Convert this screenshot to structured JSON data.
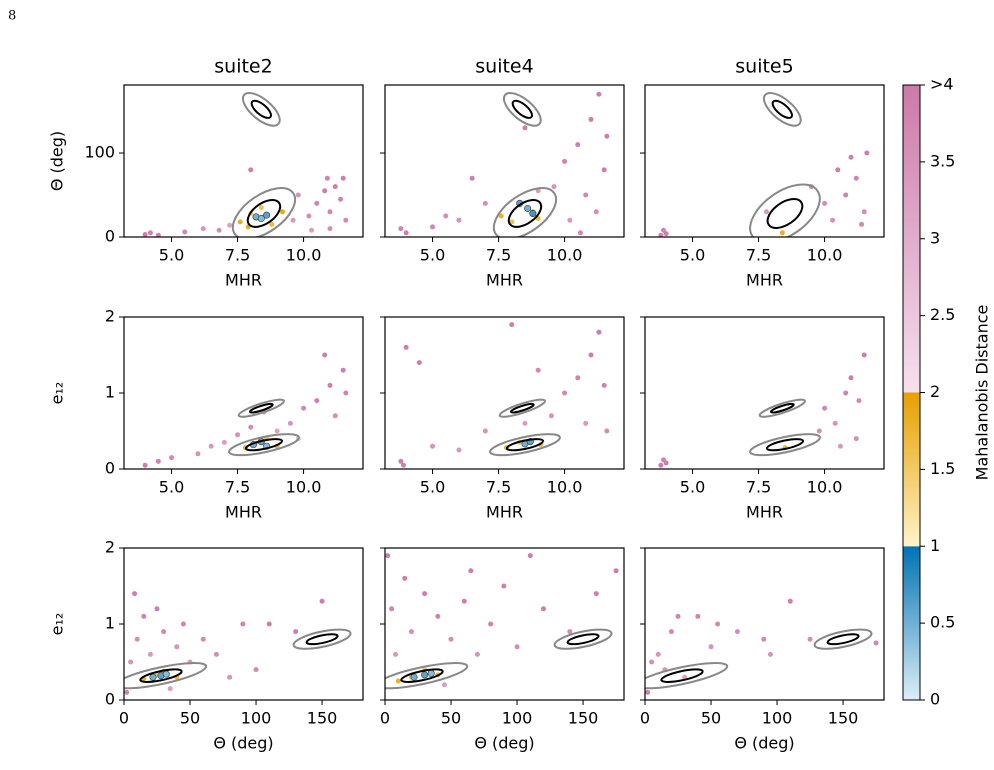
{
  "page_label": "8",
  "chart_data": [
    {
      "type": "scatter",
      "title": "suite2",
      "xlabel": "MHR",
      "ylabel": "Θ (deg)",
      "ytick_labels": true,
      "xlim": [
        3.2,
        12.25
      ],
      "ylim": [
        0,
        181
      ],
      "xticks": [
        {
          "value": 5,
          "label": "5.0"
        },
        7.5,
        {
          "value": 10,
          "label": "10.0"
        }
      ],
      "yticks": [
        0,
        100
      ],
      "x": [
        4.0,
        4.2,
        4.5,
        5.5,
        6.2,
        6.8,
        7.2,
        9.6,
        10.2,
        10.5,
        10.8,
        11.0,
        11.2,
        11.4,
        11.6,
        11.0,
        10.3,
        8.0,
        9.8,
        11.5,
        10.9,
        7.6,
        8.0,
        8.8,
        9.2,
        8.4,
        7.9,
        8.2,
        8.6,
        8.4
      ],
      "y": [
        3,
        5,
        2,
        6,
        10,
        8,
        14,
        20,
        25,
        40,
        55,
        30,
        60,
        45,
        20,
        10,
        8,
        80,
        50,
        70,
        70,
        18,
        28,
        15,
        30,
        35,
        12,
        24,
        26,
        22
      ],
      "distance": [
        3.9,
        3.8,
        3.9,
        3.7,
        3.5,
        3.6,
        3.2,
        3.4,
        3.6,
        3.8,
        3.9,
        3.7,
        3.9,
        3.8,
        3.7,
        3.6,
        3.3,
        3.9,
        3.5,
        3.9,
        3.8,
        1.8,
        1.5,
        1.7,
        1.9,
        1.6,
        1.8,
        0.5,
        0.6,
        0.4
      ],
      "ellipses": [
        {
          "cx": 8.4,
          "cy": 152,
          "rx": 0.85,
          "ry": 12,
          "angle": 40,
          "color": "#888888"
        },
        {
          "cx": 8.4,
          "cy": 152,
          "rx": 0.45,
          "ry": 6,
          "angle": 40,
          "color": "#000000"
        },
        {
          "cx": 8.5,
          "cy": 28,
          "rx": 1.35,
          "ry": 22,
          "angle": -35,
          "color": "#888888"
        },
        {
          "cx": 8.5,
          "cy": 28,
          "rx": 0.7,
          "ry": 12,
          "angle": -35,
          "color": "#000000"
        }
      ]
    },
    {
      "type": "scatter",
      "title": "suite4",
      "xlabel": "MHR",
      "ytick_labels": false,
      "xlim": [
        3.2,
        12.25
      ],
      "ylim": [
        0,
        181
      ],
      "xticks": [
        {
          "value": 5,
          "label": "5.0"
        },
        7.5,
        {
          "value": 10,
          "label": "10.0"
        }
      ],
      "yticks": [
        0,
        100
      ],
      "x": [
        4.0,
        3.8,
        5.0,
        6.0,
        6.5,
        7.0,
        9.6,
        10.0,
        10.5,
        11.0,
        11.3,
        10.8,
        11.2,
        11.5,
        10.2,
        9.0,
        5.5,
        11.6,
        8.5,
        10.6,
        7.6,
        8.0,
        9.0,
        8.3,
        8.8,
        8.3,
        8.6,
        8.8
      ],
      "y": [
        5,
        10,
        12,
        20,
        70,
        40,
        60,
        90,
        110,
        140,
        170,
        50,
        30,
        80,
        20,
        55,
        25,
        120,
        130,
        5,
        25,
        18,
        22,
        38,
        30,
        40,
        34,
        28
      ],
      "distance": [
        3.9,
        3.8,
        3.7,
        3.5,
        3.9,
        3.6,
        3.5,
        3.8,
        3.9,
        3.9,
        3.9,
        3.7,
        3.6,
        3.9,
        3.4,
        3.3,
        3.6,
        3.9,
        3.9,
        3.7,
        1.8,
        1.6,
        1.7,
        1.5,
        1.9,
        0.6,
        0.5,
        0.7
      ],
      "ellipses": [
        {
          "cx": 8.4,
          "cy": 152,
          "rx": 0.85,
          "ry": 12,
          "angle": 40,
          "color": "#888888"
        },
        {
          "cx": 8.4,
          "cy": 152,
          "rx": 0.45,
          "ry": 6,
          "angle": 40,
          "color": "#000000"
        },
        {
          "cx": 8.5,
          "cy": 28,
          "rx": 1.35,
          "ry": 22,
          "angle": -35,
          "color": "#888888"
        },
        {
          "cx": 8.5,
          "cy": 28,
          "rx": 0.7,
          "ry": 12,
          "angle": -35,
          "color": "#000000"
        }
      ]
    },
    {
      "type": "scatter",
      "title": "suite5",
      "xlabel": "MHR",
      "ytick_labels": false,
      "xlim": [
        3.2,
        12.25
      ],
      "ylim": [
        0,
        181
      ],
      "xticks": [
        {
          "value": 5,
          "label": "5.0"
        },
        7.5,
        {
          "value": 10,
          "label": "10.0"
        }
      ],
      "yticks": [
        0,
        100
      ],
      "x": [
        3.8,
        3.9,
        4.0,
        9.5,
        10.0,
        10.5,
        10.8,
        11.0,
        11.2,
        11.5,
        11.6,
        10.3,
        11.4,
        7.8,
        8.4
      ],
      "y": [
        2,
        8,
        4,
        60,
        40,
        80,
        50,
        95,
        70,
        30,
        100,
        20,
        15,
        30,
        5
      ],
      "distance": [
        3.9,
        3.8,
        3.9,
        3.7,
        3.6,
        3.9,
        3.8,
        3.9,
        3.8,
        3.6,
        3.9,
        3.5,
        3.7,
        3.4,
        1.8
      ],
      "ellipses": [
        {
          "cx": 8.4,
          "cy": 152,
          "rx": 0.85,
          "ry": 12,
          "angle": 40,
          "color": "#888888"
        },
        {
          "cx": 8.4,
          "cy": 152,
          "rx": 0.45,
          "ry": 6,
          "angle": 40,
          "color": "#000000"
        },
        {
          "cx": 8.5,
          "cy": 28,
          "rx": 1.5,
          "ry": 26,
          "angle": -35,
          "color": "#888888"
        },
        {
          "cx": 8.5,
          "cy": 28,
          "rx": 0.75,
          "ry": 13,
          "angle": -35,
          "color": "#000000"
        }
      ]
    },
    {
      "type": "scatter",
      "xlabel": "MHR",
      "ylabel": "e₁₂",
      "ytick_labels": true,
      "xlim": [
        3.2,
        12.25
      ],
      "ylim": [
        0,
        2
      ],
      "xticks": [
        {
          "value": 5,
          "label": "5.0"
        },
        7.5,
        {
          "value": 10,
          "label": "10.0"
        }
      ],
      "yticks": [
        0,
        1,
        2
      ],
      "x": [
        4.0,
        4.5,
        5.0,
        6.0,
        6.5,
        7.0,
        7.5,
        8.0,
        9.0,
        9.5,
        10.0,
        10.5,
        11.0,
        11.5,
        11.2,
        10.8,
        11.6,
        9.8,
        8.5,
        7.8,
        8.2,
        9.0,
        8.6,
        8.1,
        8.4,
        8.6
      ],
      "y": [
        0.05,
        0.1,
        0.15,
        0.2,
        0.3,
        0.35,
        0.45,
        0.55,
        0.5,
        0.6,
        0.8,
        0.9,
        1.1,
        1.3,
        0.7,
        1.5,
        1.0,
        0.4,
        0.75,
        0.28,
        0.34,
        0.3,
        0.4,
        0.32,
        0.36,
        0.3
      ],
      "distance": [
        3.9,
        3.8,
        3.7,
        3.5,
        3.4,
        3.3,
        3.5,
        3.6,
        3.2,
        3.5,
        3.7,
        3.8,
        3.9,
        3.9,
        3.6,
        3.9,
        3.8,
        2.8,
        3.6,
        1.8,
        1.5,
        1.7,
        1.6,
        0.5,
        0.6,
        0.4
      ],
      "ellipses": [
        {
          "cx": 8.4,
          "cy": 0.8,
          "rx": 0.9,
          "ry": 0.06,
          "angle": -18,
          "color": "#888888"
        },
        {
          "cx": 8.4,
          "cy": 0.8,
          "rx": 0.45,
          "ry": 0.03,
          "angle": -18,
          "color": "#000000"
        },
        {
          "cx": 8.5,
          "cy": 0.32,
          "rx": 1.35,
          "ry": 0.1,
          "angle": -12,
          "color": "#888888"
        },
        {
          "cx": 8.5,
          "cy": 0.32,
          "rx": 0.7,
          "ry": 0.055,
          "angle": -12,
          "color": "#000000"
        }
      ]
    },
    {
      "type": "scatter",
      "xlabel": "MHR",
      "ytick_labels": false,
      "xlim": [
        3.2,
        12.25
      ],
      "ylim": [
        0,
        2
      ],
      "xticks": [
        {
          "value": 5,
          "label": "5.0"
        },
        7.5,
        {
          "value": 10,
          "label": "10.0"
        }
      ],
      "yticks": [
        0,
        1,
        2
      ],
      "x": [
        3.8,
        3.9,
        4.0,
        4.5,
        5.0,
        6.0,
        7.0,
        8.0,
        8.5,
        9.5,
        10.0,
        10.5,
        11.0,
        11.3,
        11.5,
        10.8,
        11.6,
        9.0,
        7.8,
        8.3,
        9.1,
        8.5,
        8.7
      ],
      "y": [
        0.1,
        0.05,
        1.6,
        1.4,
        0.3,
        0.25,
        0.5,
        1.9,
        0.6,
        0.7,
        1.0,
        1.2,
        1.5,
        1.8,
        1.1,
        0.6,
        0.5,
        1.3,
        0.28,
        0.35,
        0.32,
        0.33,
        0.36
      ],
      "distance": [
        3.9,
        3.8,
        3.9,
        3.9,
        3.5,
        3.4,
        3.5,
        3.9,
        3.3,
        3.5,
        3.7,
        3.8,
        3.9,
        3.9,
        3.8,
        3.4,
        3.6,
        3.7,
        1.8,
        1.6,
        1.7,
        0.5,
        0.6
      ],
      "ellipses": [
        {
          "cx": 8.4,
          "cy": 0.8,
          "rx": 0.9,
          "ry": 0.06,
          "angle": -18,
          "color": "#888888"
        },
        {
          "cx": 8.4,
          "cy": 0.8,
          "rx": 0.45,
          "ry": 0.03,
          "angle": -18,
          "color": "#000000"
        },
        {
          "cx": 8.5,
          "cy": 0.32,
          "rx": 1.35,
          "ry": 0.1,
          "angle": -12,
          "color": "#888888"
        },
        {
          "cx": 8.5,
          "cy": 0.32,
          "rx": 0.7,
          "ry": 0.055,
          "angle": -12,
          "color": "#000000"
        }
      ]
    },
    {
      "type": "scatter",
      "xlabel": "MHR",
      "ytick_labels": false,
      "xlim": [
        3.2,
        12.25
      ],
      "ylim": [
        0,
        2
      ],
      "xticks": [
        {
          "value": 5,
          "label": "5.0"
        },
        7.5,
        {
          "value": 10,
          "label": "10.0"
        }
      ],
      "yticks": [
        0,
        1,
        2
      ],
      "x": [
        3.8,
        3.9,
        4.0,
        9.8,
        10.0,
        10.4,
        10.8,
        11.0,
        11.3,
        11.5,
        11.2,
        10.6,
        8.5
      ],
      "y": [
        0.05,
        0.12,
        0.08,
        0.5,
        0.8,
        0.6,
        1.0,
        1.2,
        0.9,
        1.5,
        0.4,
        0.3,
        0.28
      ],
      "distance": [
        3.9,
        3.8,
        3.9,
        3.6,
        3.7,
        3.5,
        3.8,
        3.9,
        3.7,
        3.9,
        3.6,
        3.4,
        1.8
      ],
      "ellipses": [
        {
          "cx": 8.4,
          "cy": 0.8,
          "rx": 0.9,
          "ry": 0.06,
          "angle": -18,
          "color": "#888888"
        },
        {
          "cx": 8.4,
          "cy": 0.8,
          "rx": 0.45,
          "ry": 0.03,
          "angle": -18,
          "color": "#000000"
        },
        {
          "cx": 8.5,
          "cy": 0.32,
          "rx": 1.35,
          "ry": 0.1,
          "angle": -12,
          "color": "#888888"
        },
        {
          "cx": 8.5,
          "cy": 0.32,
          "rx": 0.7,
          "ry": 0.055,
          "angle": -12,
          "color": "#000000"
        }
      ]
    },
    {
      "type": "scatter",
      "xlabel": "Θ (deg)",
      "ylabel": "e₁₂",
      "ytick_labels": true,
      "xlim": [
        0,
        181
      ],
      "ylim": [
        0,
        2
      ],
      "xticks": [
        0,
        50,
        100,
        150
      ],
      "yticks": [
        0,
        1,
        2
      ],
      "x": [
        2,
        5,
        8,
        10,
        15,
        20,
        25,
        30,
        40,
        45,
        50,
        60,
        70,
        80,
        90,
        110,
        130,
        150,
        100,
        35,
        15,
        25,
        40,
        30,
        22,
        28,
        32
      ],
      "y": [
        0.1,
        0.5,
        1.4,
        0.8,
        1.1,
        0.6,
        1.2,
        0.9,
        0.7,
        1.0,
        0.5,
        0.8,
        0.6,
        0.3,
        1.0,
        1.0,
        0.9,
        1.3,
        0.4,
        0.15,
        0.28,
        0.33,
        0.3,
        0.38,
        0.3,
        0.32,
        0.34
      ],
      "distance": [
        3.8,
        3.5,
        3.9,
        3.6,
        3.8,
        3.4,
        3.9,
        3.7,
        3.5,
        3.8,
        3.4,
        3.7,
        3.6,
        3.5,
        3.8,
        3.9,
        3.9,
        3.9,
        3.7,
        3.3,
        1.8,
        1.5,
        1.7,
        1.6,
        0.5,
        0.6,
        0.4
      ],
      "ellipses": [
        {
          "cx": 150,
          "cy": 0.8,
          "rx": 22,
          "ry": 0.1,
          "angle": -12,
          "color": "#888888"
        },
        {
          "cx": 150,
          "cy": 0.8,
          "rx": 12,
          "ry": 0.05,
          "angle": -12,
          "color": "#000000"
        },
        {
          "cx": 28,
          "cy": 0.32,
          "rx": 35,
          "ry": 0.11,
          "angle": -12,
          "color": "#888888"
        },
        {
          "cx": 28,
          "cy": 0.32,
          "rx": 16,
          "ry": 0.06,
          "angle": -12,
          "color": "#000000"
        }
      ]
    },
    {
      "type": "scatter",
      "xlabel": "Θ (deg)",
      "ytick_labels": false,
      "xlim": [
        0,
        181
      ],
      "ylim": [
        0,
        2
      ],
      "xticks": [
        0,
        50,
        100,
        150
      ],
      "yticks": [
        0,
        1,
        2
      ],
      "x": [
        2,
        5,
        8,
        15,
        20,
        30,
        40,
        50,
        60,
        70,
        80,
        90,
        100,
        120,
        140,
        160,
        175,
        45,
        110,
        65,
        10,
        20,
        40,
        30,
        22,
        30,
        35
      ],
      "y": [
        1.9,
        1.2,
        0.6,
        1.6,
        0.9,
        1.4,
        1.1,
        0.8,
        1.3,
        0.6,
        1.0,
        1.5,
        0.7,
        1.2,
        0.9,
        1.4,
        1.7,
        0.2,
        1.9,
        1.7,
        0.25,
        0.3,
        0.33,
        0.4,
        0.3,
        0.33,
        0.35
      ],
      "distance": [
        3.9,
        3.8,
        3.4,
        3.9,
        3.6,
        3.9,
        3.8,
        3.6,
        3.9,
        3.5,
        3.8,
        3.9,
        3.6,
        3.9,
        3.7,
        3.9,
        3.9,
        3.3,
        3.9,
        3.9,
        1.8,
        1.6,
        1.7,
        1.5,
        0.5,
        0.6,
        0.4
      ],
      "ellipses": [
        {
          "cx": 150,
          "cy": 0.8,
          "rx": 22,
          "ry": 0.1,
          "angle": -12,
          "color": "#888888"
        },
        {
          "cx": 150,
          "cy": 0.8,
          "rx": 12,
          "ry": 0.05,
          "angle": -12,
          "color": "#000000"
        },
        {
          "cx": 28,
          "cy": 0.32,
          "rx": 35,
          "ry": 0.11,
          "angle": -12,
          "color": "#888888"
        },
        {
          "cx": 28,
          "cy": 0.32,
          "rx": 16,
          "ry": 0.06,
          "angle": -12,
          "color": "#000000"
        }
      ]
    },
    {
      "type": "scatter",
      "xlabel": "Θ (deg)",
      "ytick_labels": false,
      "xlim": [
        0,
        181
      ],
      "ylim": [
        0,
        2
      ],
      "xticks": [
        0,
        50,
        100,
        150
      ],
      "yticks": [
        0,
        1,
        2
      ],
      "x": [
        2,
        5,
        10,
        15,
        20,
        25,
        30,
        40,
        55,
        70,
        90,
        95,
        110,
        125,
        175,
        50
      ],
      "y": [
        0.1,
        0.5,
        0.6,
        0.4,
        0.9,
        1.1,
        0.3,
        1.1,
        1.0,
        0.9,
        0.8,
        0.6,
        1.3,
        0.8,
        0.75,
        0.7
      ],
      "distance": [
        3.8,
        3.6,
        3.5,
        3.4,
        3.7,
        3.8,
        3.2,
        3.8,
        3.7,
        3.6,
        3.7,
        3.5,
        3.9,
        3.6,
        3.7,
        3.5
      ],
      "ellipses": [
        {
          "cx": 150,
          "cy": 0.8,
          "rx": 22,
          "ry": 0.1,
          "angle": -12,
          "color": "#888888"
        },
        {
          "cx": 150,
          "cy": 0.8,
          "rx": 12,
          "ry": 0.05,
          "angle": -12,
          "color": "#000000"
        },
        {
          "cx": 28,
          "cy": 0.32,
          "rx": 35,
          "ry": 0.11,
          "angle": -12,
          "color": "#888888"
        },
        {
          "cx": 28,
          "cy": 0.32,
          "rx": 16,
          "ry": 0.06,
          "angle": -12,
          "color": "#000000"
        }
      ]
    }
  ],
  "colorbar": {
    "label": "Mahalanobis Distance",
    "lim": [
      0,
      4
    ],
    "ticks": [
      0,
      0.5,
      1,
      1.5,
      2,
      2.5,
      3,
      3.5,
      {
        "value": 4,
        "label": ">4"
      }
    ],
    "segments": [
      {
        "from": 0,
        "to": 1,
        "colors": [
          "#ddeef8",
          "#0072b2"
        ]
      },
      {
        "from": 1,
        "to": 2,
        "colors": [
          "#fff3c8",
          "#e69f00"
        ]
      },
      {
        "from": 2,
        "to": 4,
        "colors": [
          "#f6e0ee",
          "#cc79a7"
        ]
      }
    ]
  }
}
